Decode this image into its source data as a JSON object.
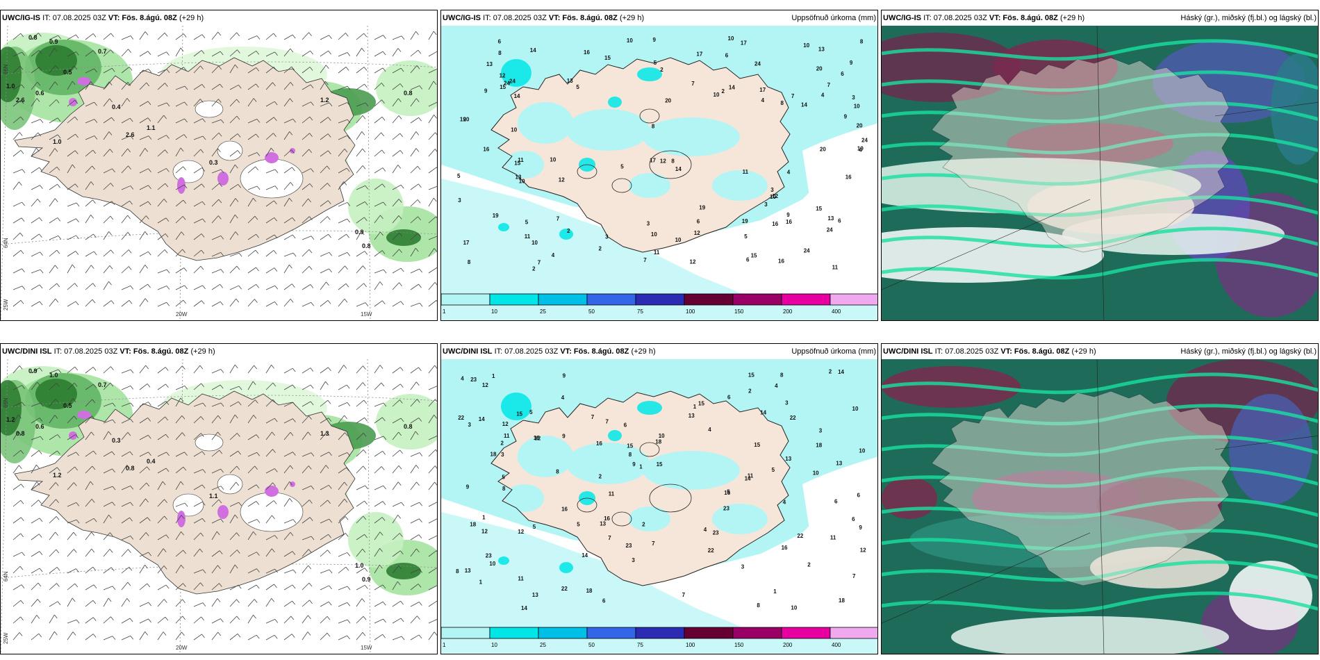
{
  "panels": [
    {
      "model": "UWC/IG-IS",
      "it": "IT: 07.08.2025 03Z",
      "vt_label": "VT: Fös. 8.ágú. 08Z",
      "lead": "(+29 h)",
      "right": ""
    },
    {
      "model": "UWC/IG-IS",
      "it": "IT: 07.08.2025 03Z",
      "vt_label": "VT: Fös. 8.ágú. 08Z",
      "lead": "(+29 h)",
      "right": "Uppsöfnuð úrkoma (mm)"
    },
    {
      "model": "UWC/IG-IS",
      "it": "IT: 07.08.2025 03Z",
      "vt_label": "VT: Fös. 8.ágú. 08Z",
      "lead": "(+29 h)",
      "right": "Háský (gr.), miðský (fj.bl.) og lágský (bl.)"
    },
    {
      "model": "UWC/DINI ISL",
      "it": "IT: 07.08.2025 03Z",
      "vt_label": "VT: Fös. 8.ágú. 08Z",
      "lead": "(+29 h)",
      "right": ""
    },
    {
      "model": "UWC/DINI ISL",
      "it": "IT: 07.08.2025 03Z",
      "vt_label": "VT: Fös. 8.ágú. 08Z",
      "lead": "(+29 h)",
      "right": "Uppsöfnuð úrkoma (mm)"
    },
    {
      "model": "UWC/DINI ISL",
      "it": "IT: 07.08.2025 03Z",
      "vt_label": "VT: Fös. 8.ágú. 08Z",
      "lead": "(+29 h)",
      "right": "Háský (gr.), miðský (fj.bl.) og lágský (bl.)"
    }
  ],
  "grid_labels": {
    "lon_20": "20W",
    "lon_15": "15W",
    "lon_25": "25W",
    "lat_66": "66N",
    "lat_64": "64N"
  },
  "colorbar": {
    "ticks": [
      "1",
      "10",
      "25",
      "50",
      "75",
      "100",
      "150",
      "200",
      "400"
    ],
    "colors": [
      "#b3f5f5",
      "#00e6e6",
      "#00bfe6",
      "#3366e6",
      "#2b2bb3",
      "#660033",
      "#990066",
      "#e600a0",
      "#f0a8ee"
    ]
  },
  "precip_values_top": [
    "10",
    "12",
    "24",
    "16",
    "10",
    "8",
    "7",
    "6",
    "5",
    "3",
    "2",
    "4",
    "9",
    "11",
    "19",
    "17",
    "13",
    "14",
    "20",
    "15"
  ],
  "precip_values_bot": [
    "6",
    "7",
    "8",
    "5",
    "4",
    "3",
    "2",
    "1",
    "10",
    "13",
    "14",
    "15",
    "16",
    "18",
    "12",
    "11",
    "9",
    "22",
    "23"
  ],
  "wind_values_top": [
    "0.8",
    "0.9",
    "1.0",
    "2.6",
    "0.6",
    "0.5",
    "0.7",
    "0.4",
    "1.1",
    "0.3",
    "1.2",
    "0.8"
  ],
  "wind_values_bot": [
    "0.9",
    "1.0",
    "1.2",
    "0.8",
    "0.6",
    "0.5",
    "0.7",
    "0.3",
    "0.4",
    "1.1",
    "1.3",
    "0.8"
  ]
}
